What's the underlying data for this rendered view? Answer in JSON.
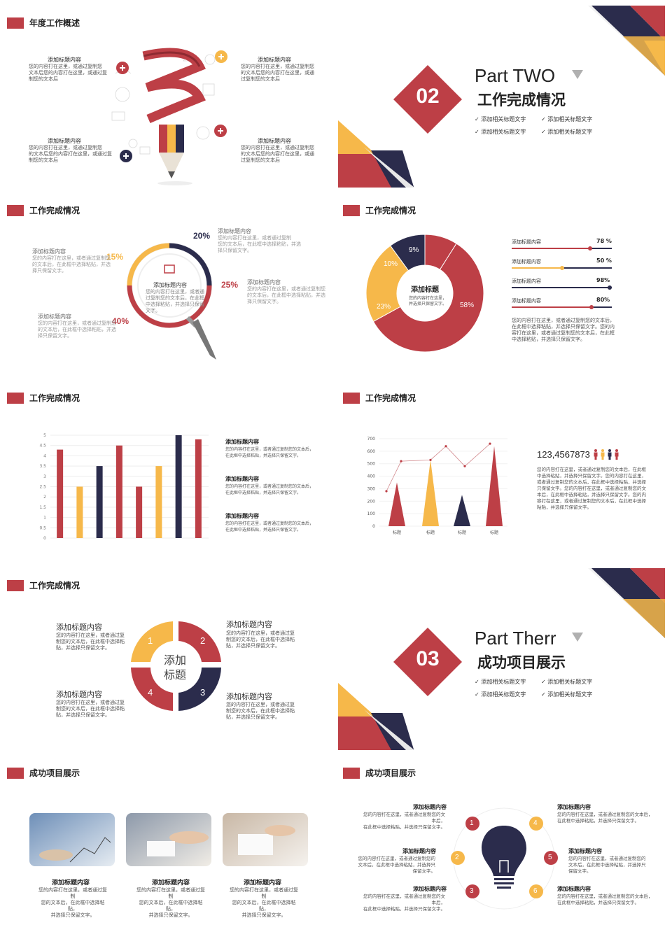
{
  "colors": {
    "red": "#bd3f46",
    "yellow": "#f6b84a",
    "navy": "#2b2c4c",
    "grey": "#cccccc"
  },
  "s1": {
    "header": "年度工作概述",
    "blocks": [
      {
        "title": "添加标题内容",
        "text": [
          "您的内容打在这里，或通过复制您",
          "文本后您的内容打在这里，或通过复",
          "制您的文本后"
        ]
      },
      {
        "title": "添加标题内容",
        "text": [
          "您的内容打在这里，或通过复制您",
          "的文本后您的内容打在这里，或通",
          "过复制您的文本后"
        ]
      },
      {
        "title": "添加标题内容",
        "text": [
          "您的内容打在这里，或通过复制您",
          "的文本后您的内容打在这里，或通过复",
          "制您的文本后"
        ]
      },
      {
        "title": "添加标题内容",
        "text": [
          "您的内容打在这里，或通过复制您",
          "的文本后您的内容打在这里，或通",
          "过复制您的文本后"
        ]
      }
    ]
  },
  "s2": {
    "part": "Part TWO",
    "number": "02",
    "title": "工作完成情况",
    "items": [
      "添加相关标题文字",
      "添加相关标题文字",
      "添加相关标题文字",
      "添加相关标题文字"
    ]
  },
  "s3": {
    "header": "工作完成情况",
    "center_title": "添加标题内容",
    "center_text": [
      "您的内容打在这里，或者通",
      "过复制您的文本后，在此框",
      "中选择粘贴，并选择只保留",
      "文字。"
    ],
    "blocks": [
      {
        "pct": "20%",
        "title": "添加标题内容",
        "text": [
          "您的内容打在这里，或者通过复制",
          "您的文本后，在此框中选择粘贴，并选",
          "择只保留文字。"
        ]
      },
      {
        "pct": "15%",
        "title": "添加标题内容",
        "text": [
          "您的内容打在这里，或者通过复制您",
          "的文本后，在此框中选择粘贴，并选",
          "择只保留文字。"
        ]
      },
      {
        "pct": "25%",
        "title": "添加标题内容",
        "text": [
          "您的内容打在这里，或者通过复制您",
          "的文本后，在此框中选择粘贴，并选",
          "择只保留文字。"
        ]
      },
      {
        "pct": "40%",
        "title": "添加标题内容",
        "text": [
          "您的内容打在这里，或者通过复制您",
          "的文本后，在此框中选择粘贴，并选",
          "择只保留文字。"
        ]
      }
    ]
  },
  "s4": {
    "header": "工作完成情况",
    "donut_title": "添加标题",
    "donut_text": [
      "您的内容打在这里，",
      "并选择只保留文字。"
    ],
    "slices": [
      {
        "label": "58%",
        "value": 58,
        "color": "red"
      },
      {
        "label": "23%",
        "value": 23,
        "color": "yellow"
      },
      {
        "label": "10%",
        "value": 10,
        "color": "navy"
      },
      {
        "label": "9%",
        "value": 9,
        "color": "red"
      }
    ],
    "bars": [
      {
        "label": "添加标题内容",
        "value": "78 %",
        "fill": 0.78,
        "color": "red"
      },
      {
        "label": "添加标题内容",
        "value": "50 %",
        "fill": 0.5,
        "color": "yellow"
      },
      {
        "label": "添加标题内容",
        "value": "98%",
        "fill": 0.98,
        "color": "navy"
      },
      {
        "label": "添加标题内容",
        "value": "80%",
        "fill": 0.8,
        "color": "red"
      }
    ],
    "text": [
      "您的内容打在这里，或者通过复制您的文本后，",
      "在此框中选择粘贴，并选择只保留文字。您的内",
      "容打在这里，或者通过复制您的文本后，在此框",
      "中选择粘贴，并选择只保留文字。"
    ]
  },
  "s5": {
    "header": "工作完成情况",
    "chart_data": {
      "type": "bar",
      "yticks": [
        "0",
        "0.5",
        "1",
        "1.5",
        "2",
        "2.5",
        "3",
        "3.5",
        "4",
        "4.5",
        "5"
      ],
      "ylim": [
        0,
        5
      ],
      "values": [
        4.3,
        2.5,
        3.5,
        4.5,
        2.5,
        3.5,
        5,
        4.8
      ],
      "colors": [
        "red",
        "yellow",
        "navy",
        "red",
        "red",
        "yellow",
        "navy",
        "red"
      ]
    },
    "blocks": [
      {
        "title": "添加标题内容",
        "text": [
          "您的内容打在这里，或者通过复制您的文本后，",
          "在此框中选择粘贴，并选择只保留文字。"
        ]
      },
      {
        "title": "添加标题内容",
        "text": [
          "您的内容打在这里，或者通过复制您的文本后，",
          "在此框中选择粘贴，并选择只保留文字。"
        ]
      },
      {
        "title": "添加标题内容",
        "text": [
          "您的内容打在这里，或者通过复制您的文本后，",
          "在此框中选择粘贴，并选择只保留文字。"
        ]
      }
    ]
  },
  "s6": {
    "header": "工作完成情况",
    "chart_data": {
      "type": "bar",
      "yticks": [
        "0",
        "100",
        "200",
        "300",
        "400",
        "500",
        "600",
        "700"
      ],
      "ylim": [
        0,
        700
      ],
      "categories": [
        "标题",
        "标题",
        "标题",
        "标题"
      ],
      "values": [
        350,
        530,
        250,
        640
      ],
      "colors": [
        "red",
        "yellow",
        "navy",
        "red"
      ],
      "line": [
        280,
        520,
        530,
        640,
        480,
        660
      ]
    },
    "number": "123,4567873",
    "text": [
      "您的内容打在这里，或者通过复制您的文本后，在此框",
      "中选择粘贴，并选择只保留文字。您的内容打在这里，",
      "或者通过复制您的文本后，在此框中选择粘贴，并选择",
      "只保留文字。您的内容打在这里，或者通过复制您的文",
      "本后，在此框中选择粘贴，并选择只保留文字。您的内",
      "容打在这里，或者通过复制您的文本后，在此框中选择",
      "粘贴，并选择只保留文字。"
    ]
  },
  "s7": {
    "header": "工作完成情况",
    "center": [
      "添加",
      "标题"
    ],
    "nums": [
      "1",
      "2",
      "3",
      "4"
    ],
    "blocks": [
      {
        "title": "添加标题内容",
        "text": [
          "您的内容打在这里，或者通过复",
          "制您的文本后，在此框中选择粘",
          "贴，并选择只保留文字。"
        ]
      },
      {
        "title": "添加标题内容",
        "text": [
          "您的内容打在这里，或者通过复",
          "制您的文本后，在此框中选择粘",
          "贴，并选择只保留文字。"
        ]
      },
      {
        "title": "添加标题内容",
        "text": [
          "您的内容打在这里，或者通过复",
          "制您的文本后，在此框中选择粘",
          "贴，并选择只保留文字。"
        ]
      },
      {
        "title": "添加标题内容",
        "text": [
          "您的内容打在这里，或者通过复",
          "制您的文本后，在此框中选择粘",
          "贴，并选择只保留文字。"
        ]
      }
    ]
  },
  "s8": {
    "part": "Part Therr",
    "number": "03",
    "title": "成功项目展示",
    "items": [
      "添加相关标题文字",
      "添加相关标题文字",
      "添加相关标题文字",
      "添加相关标题文字"
    ]
  },
  "s9": {
    "header": "成功项目展示",
    "cards": [
      {
        "title": "添加标题内容",
        "text": [
          "您的内容打在这里，或者通过复制",
          "您的文本后，在此框中选择粘贴，",
          "并选择只保留文字。"
        ]
      },
      {
        "title": "添加标题内容",
        "text": [
          "您的内容打在这里，或者通过复制",
          "您的文本后，在此框中选择粘贴，",
          "并选择只保留文字。"
        ]
      },
      {
        "title": "添加标题内容",
        "text": [
          "您的内容打在这里，或者通过复制",
          "您的文本后，在此框中选择粘贴，",
          "并选择只保留文字。"
        ]
      }
    ]
  },
  "s10": {
    "header": "成功项目展示",
    "nums": [
      "1",
      "2",
      "3",
      "4",
      "5",
      "6"
    ],
    "blocks": [
      {
        "title": "添加标题内容",
        "text": [
          "您的内容打在这里，或者通过复制您的文本后，",
          "在此框中选择粘贴，并选择只保留文字。"
        ]
      },
      {
        "title": "添加标题内容",
        "text": [
          "您的内容打在这里，或者通过复制您的",
          "文本后，在此框中选择粘贴，并选择只",
          "保留文字。"
        ]
      },
      {
        "title": "添加标题内容",
        "text": [
          "您的内容打在这里，或者通过复制您的文本后，",
          "在此框中选择粘贴，并选择只保留文字。"
        ]
      },
      {
        "title": "添加标题内容",
        "text": [
          "您的内容打在这里，或者通过复制您的文本后，",
          "在此框中选择粘贴，并选择只保留文字。"
        ]
      },
      {
        "title": "添加标题内容",
        "text": [
          "您的内容打在这里，或者通过复制您的",
          "文本后，在此框中选择粘贴，并选择只",
          "保留文字。"
        ]
      },
      {
        "title": "添加标题内容",
        "text": [
          "您的内容打在这里，或者通过复制您的文本后，",
          "在此框中选择粘贴，并选择只保留文字。"
        ]
      }
    ]
  }
}
